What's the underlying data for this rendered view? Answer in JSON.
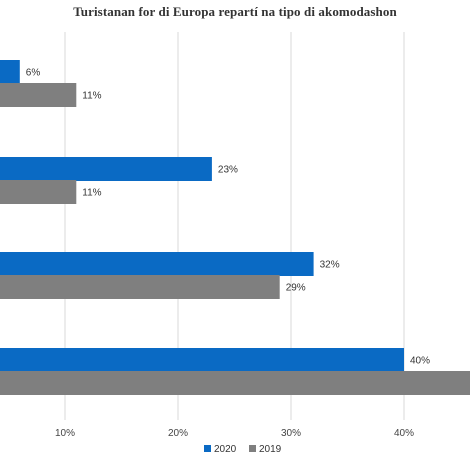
{
  "chart_data": {
    "type": "bar",
    "orientation": "horizontal",
    "title": "Turistanan for di Europa repartí na tipo di akomodashon",
    "categories": [
      "",
      "",
      "",
      ""
    ],
    "series": [
      {
        "name": "2020",
        "color": "#0a6ac4",
        "values": [
          6,
          23,
          32,
          40
        ],
        "labels": [
          "6%",
          "23%",
          "32%",
          "40%"
        ]
      },
      {
        "name": "2019",
        "color": "#7f7f7f",
        "values": [
          11,
          11,
          29,
          48
        ],
        "labels": [
          "11%",
          "11%",
          "29%",
          ""
        ]
      }
    ],
    "xlim": [
      0,
      50
    ],
    "xticks": [
      10,
      20,
      30,
      40
    ],
    "xtick_labels": [
      "10%",
      "20%",
      "30%",
      "40%"
    ],
    "grid": true,
    "legend_position": "bottom"
  }
}
